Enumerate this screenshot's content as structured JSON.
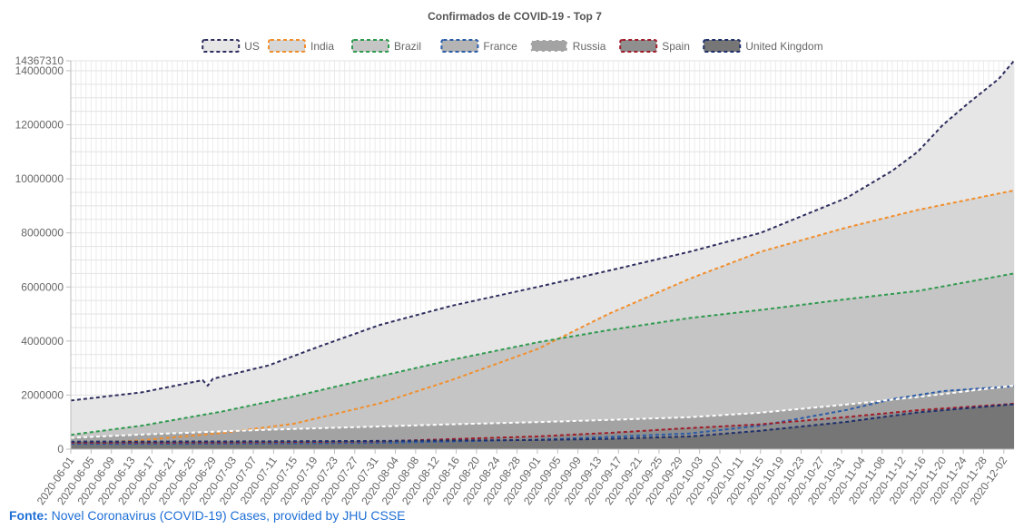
{
  "chart_data": {
    "type": "area",
    "title": "Confirmados de COVID-19 - Top 7",
    "xlabel": "",
    "ylabel": "",
    "ylim": [
      0,
      14367310
    ],
    "y_ticks": [
      0,
      2000000,
      4000000,
      6000000,
      8000000,
      10000000,
      12000000,
      14000000,
      14367310
    ],
    "grid": true,
    "legend_position": "top",
    "x_start": "2020-06-01",
    "x_end": "2020-12-04",
    "x_tick_labels": [
      "2020-06-01",
      "2020-06-05",
      "2020-06-09",
      "2020-06-13",
      "2020-06-17",
      "2020-06-21",
      "2020-06-25",
      "2020-06-29",
      "2020-07-03",
      "2020-07-07",
      "2020-07-11",
      "2020-07-15",
      "2020-07-19",
      "2020-07-23",
      "2020-07-27",
      "2020-07-31",
      "2020-08-04",
      "2020-08-08",
      "2020-08-12",
      "2020-08-16",
      "2020-08-20",
      "2020-08-24",
      "2020-08-28",
      "2020-09-01",
      "2020-09-05",
      "2020-09-09",
      "2020-09-13",
      "2020-09-17",
      "2020-09-21",
      "2020-09-25",
      "2020-09-29",
      "2020-10-03",
      "2020-10-07",
      "2020-10-11",
      "2020-10-15",
      "2020-10-19",
      "2020-10-23",
      "2020-10-27",
      "2020-10-31",
      "2020-11-04",
      "2020-11-08",
      "2020-11-12",
      "2020-11-16",
      "2020-11-20",
      "2020-11-24",
      "2020-11-28",
      "2020-12-02"
    ],
    "series": [
      {
        "name": "US",
        "line_color": "#2d2d5e",
        "fill": "#e6e6e6",
        "points": [
          [
            "2020-06-01",
            1800000
          ],
          [
            "2020-06-15",
            2100000
          ],
          [
            "2020-06-27",
            2550000
          ],
          [
            "2020-06-28",
            2350000
          ],
          [
            "2020-06-29",
            2600000
          ],
          [
            "2020-07-10",
            3100000
          ],
          [
            "2020-07-20",
            3800000
          ],
          [
            "2020-08-01",
            4600000
          ],
          [
            "2020-08-15",
            5300000
          ],
          [
            "2020-09-01",
            6000000
          ],
          [
            "2020-09-15",
            6600000
          ],
          [
            "2020-10-01",
            7300000
          ],
          [
            "2020-10-15",
            8000000
          ],
          [
            "2020-11-01",
            9300000
          ],
          [
            "2020-11-10",
            10300000
          ],
          [
            "2020-11-15",
            11000000
          ],
          [
            "2020-11-20",
            12000000
          ],
          [
            "2020-11-25",
            12800000
          ],
          [
            "2020-12-01",
            13700000
          ],
          [
            "2020-12-04",
            14367310
          ]
        ]
      },
      {
        "name": "India",
        "line_color": "#f28e2b",
        "fill": "#d6d6d6",
        "points": [
          [
            "2020-06-01",
            190000
          ],
          [
            "2020-06-15",
            330000
          ],
          [
            "2020-07-01",
            600000
          ],
          [
            "2020-07-15",
            940000
          ],
          [
            "2020-08-01",
            1700000
          ],
          [
            "2020-08-15",
            2550000
          ],
          [
            "2020-09-01",
            3700000
          ],
          [
            "2020-09-15",
            5000000
          ],
          [
            "2020-10-01",
            6300000
          ],
          [
            "2020-10-15",
            7300000
          ],
          [
            "2020-11-01",
            8200000
          ],
          [
            "2020-11-15",
            8850000
          ],
          [
            "2020-12-04",
            9570000
          ]
        ]
      },
      {
        "name": "Brazil",
        "line_color": "#2e9a4e",
        "fill": "#c5c5c5",
        "points": [
          [
            "2020-06-01",
            530000
          ],
          [
            "2020-06-15",
            870000
          ],
          [
            "2020-07-01",
            1400000
          ],
          [
            "2020-07-15",
            1950000
          ],
          [
            "2020-08-01",
            2700000
          ],
          [
            "2020-08-15",
            3300000
          ],
          [
            "2020-09-01",
            3950000
          ],
          [
            "2020-09-15",
            4400000
          ],
          [
            "2020-10-01",
            4850000
          ],
          [
            "2020-10-15",
            5150000
          ],
          [
            "2020-11-01",
            5550000
          ],
          [
            "2020-11-15",
            5850000
          ],
          [
            "2020-12-04",
            6500000
          ]
        ]
      },
      {
        "name": "France",
        "line_color": "#2b5ca8",
        "fill": "#b4b4b4",
        "points": [
          [
            "2020-06-01",
            190000
          ],
          [
            "2020-07-01",
            200000
          ],
          [
            "2020-08-01",
            230000
          ],
          [
            "2020-09-01",
            350000
          ],
          [
            "2020-09-15",
            450000
          ],
          [
            "2020-10-01",
            580000
          ],
          [
            "2020-10-15",
            870000
          ],
          [
            "2020-11-01",
            1450000
          ],
          [
            "2020-11-10",
            1850000
          ],
          [
            "2020-11-20",
            2150000
          ],
          [
            "2020-12-04",
            2330000
          ]
        ]
      },
      {
        "name": "Russia",
        "line_color": "#ffffff",
        "fill": "#a3a3a3",
        "points": [
          [
            "2020-06-01",
            420000
          ],
          [
            "2020-06-15",
            540000
          ],
          [
            "2020-07-01",
            660000
          ],
          [
            "2020-07-15",
            750000
          ],
          [
            "2020-08-01",
            840000
          ],
          [
            "2020-08-15",
            920000
          ],
          [
            "2020-09-01",
            1000000
          ],
          [
            "2020-09-15",
            1080000
          ],
          [
            "2020-10-01",
            1180000
          ],
          [
            "2020-10-15",
            1350000
          ],
          [
            "2020-11-01",
            1650000
          ],
          [
            "2020-11-15",
            1930000
          ],
          [
            "2020-12-04",
            2350000
          ]
        ]
      },
      {
        "name": "Spain",
        "line_color": "#a01c2a",
        "fill": "#8f8f8f",
        "points": [
          [
            "2020-06-01",
            240000
          ],
          [
            "2020-07-01",
            250000
          ],
          [
            "2020-08-01",
            290000
          ],
          [
            "2020-09-01",
            470000
          ],
          [
            "2020-09-15",
            600000
          ],
          [
            "2020-10-01",
            780000
          ],
          [
            "2020-10-15",
            920000
          ],
          [
            "2020-11-01",
            1190000
          ],
          [
            "2020-11-15",
            1440000
          ],
          [
            "2020-12-04",
            1680000
          ]
        ]
      },
      {
        "name": "United Kingdom",
        "line_color": "#1f2f6b",
        "fill": "#767676",
        "points": [
          [
            "2020-06-01",
            280000
          ],
          [
            "2020-07-01",
            285000
          ],
          [
            "2020-08-01",
            305000
          ],
          [
            "2020-09-01",
            340000
          ],
          [
            "2020-09-15",
            380000
          ],
          [
            "2020-10-01",
            470000
          ],
          [
            "2020-10-15",
            680000
          ],
          [
            "2020-11-01",
            1010000
          ],
          [
            "2020-11-15",
            1360000
          ],
          [
            "2020-12-04",
            1660000
          ]
        ]
      }
    ]
  },
  "footer": {
    "label": "Fonte:",
    "text": "Novel Coronavirus (COVID-19) Cases, provided by JHU CSSE"
  }
}
